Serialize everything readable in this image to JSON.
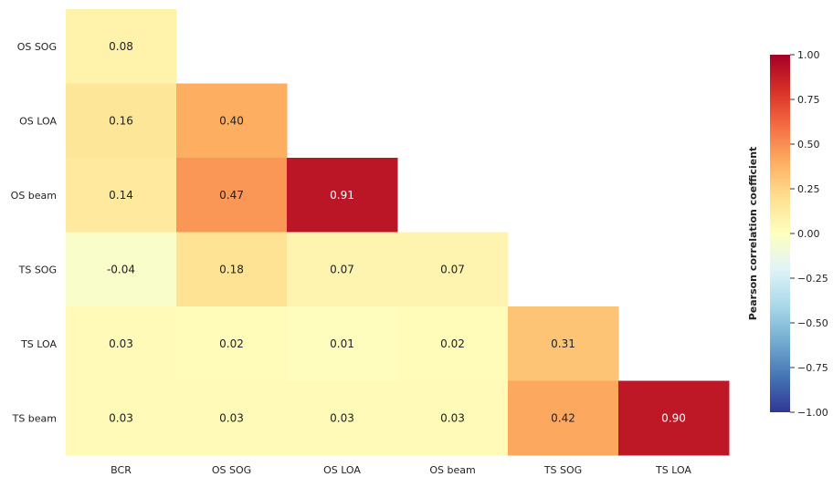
{
  "chart_data": {
    "type": "heatmap",
    "title": "",
    "row_labels": [
      "OS SOG",
      "OS LOA",
      "OS beam",
      "TS SOG",
      "TS LOA",
      "TS beam"
    ],
    "col_labels": [
      "BCR",
      "OS SOG",
      "OS LOA",
      "OS beam",
      "TS SOG",
      "TS LOA"
    ],
    "values": [
      [
        0.08
      ],
      [
        0.16,
        0.4
      ],
      [
        0.14,
        0.47,
        0.91
      ],
      [
        -0.04,
        0.18,
        0.07,
        0.07
      ],
      [
        0.03,
        0.02,
        0.01,
        0.02,
        0.31
      ],
      [
        0.03,
        0.03,
        0.03,
        0.03,
        0.42,
        0.9
      ]
    ],
    "value_labels": [
      [
        "0.08"
      ],
      [
        "0.16",
        "0.40"
      ],
      [
        "0.14",
        "0.47",
        "0.91"
      ],
      [
        "-0.04",
        "0.18",
        "0.07",
        "0.07"
      ],
      [
        "0.03",
        "0.02",
        "0.01",
        "0.02",
        "0.31"
      ],
      [
        "0.03",
        "0.03",
        "0.03",
        "0.03",
        "0.42",
        "0.90"
      ]
    ],
    "colorbar": {
      "label": "Pearson correlation coefficient",
      "range": [
        -1.0,
        1.0
      ],
      "ticks": [
        "1.00",
        "0.75",
        "0.50",
        "0.25",
        "0.00",
        "−0.25",
        "−0.50",
        "−0.75",
        "−1.00"
      ],
      "tick_values": [
        1.0,
        0.75,
        0.5,
        0.25,
        0.0,
        -0.25,
        -0.5,
        -0.75,
        -1.0
      ],
      "colormap": "RdYlBu_r"
    }
  }
}
